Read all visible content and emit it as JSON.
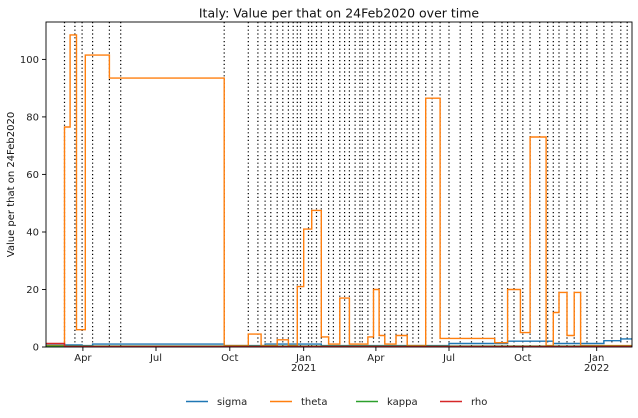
{
  "chart_data": {
    "type": "line",
    "title": "Italy: Value per that on 24Feb2020 over time",
    "xlabel": "",
    "ylabel": "Value per that on 24Feb2020",
    "xlim": [
      "2020-02-15",
      "2022-02-14"
    ],
    "ylim": [
      0,
      113
    ],
    "y_ticks": [
      0,
      20,
      40,
      60,
      80,
      100
    ],
    "x_ticks": [
      {
        "date": "2020-04-01",
        "label": "Apr",
        "sub": ""
      },
      {
        "date": "2020-07-01",
        "label": "Jul",
        "sub": ""
      },
      {
        "date": "2020-10-01",
        "label": "Oct",
        "sub": ""
      },
      {
        "date": "2021-01-01",
        "label": "Jan",
        "sub": "2021"
      },
      {
        "date": "2021-04-01",
        "label": "Apr",
        "sub": ""
      },
      {
        "date": "2021-07-01",
        "label": "Jul",
        "sub": ""
      },
      {
        "date": "2021-10-01",
        "label": "Oct",
        "sub": ""
      },
      {
        "date": "2022-01-01",
        "label": "Jan",
        "sub": "2022"
      }
    ],
    "grid": false,
    "legend_position": "bottom-center",
    "vlines": [
      "2020-03-09",
      "2020-03-22",
      "2020-03-31",
      "2020-04-13",
      "2020-05-04",
      "2020-05-18",
      "2020-09-24",
      "2020-10-24",
      "2020-11-05",
      "2020-11-14",
      "2020-11-21",
      "2020-11-29",
      "2020-12-06",
      "2020-12-13",
      "2020-12-19",
      "2020-12-24",
      "2020-12-28",
      "2021-01-07",
      "2021-01-11",
      "2021-01-17",
      "2021-01-23",
      "2021-02-01",
      "2021-02-07",
      "2021-02-15",
      "2021-02-21",
      "2021-02-27",
      "2021-03-06",
      "2021-03-12",
      "2021-03-15",
      "2021-03-22",
      "2021-03-29",
      "2021-04-05",
      "2021-04-12",
      "2021-04-19",
      "2021-04-26",
      "2021-05-03",
      "2021-05-10",
      "2021-05-17",
      "2021-05-24",
      "2021-06-02",
      "2021-06-10",
      "2021-06-20",
      "2021-07-01",
      "2021-07-15",
      "2021-07-29",
      "2021-08-12",
      "2021-08-27",
      "2021-09-05",
      "2021-09-12",
      "2021-09-20",
      "2021-10-01",
      "2021-10-10",
      "2021-10-22",
      "2021-11-01",
      "2021-11-08",
      "2021-11-15",
      "2021-11-25",
      "2021-12-04",
      "2021-12-12",
      "2021-12-20",
      "2022-01-01",
      "2022-01-10",
      "2022-01-20",
      "2022-01-31",
      "2022-02-08"
    ],
    "series": [
      {
        "name": "sigma",
        "color": "#1f77b4",
        "points": [
          [
            "2020-02-15",
            1.0
          ],
          [
            "2020-03-09",
            1.0
          ],
          [
            "2020-03-09",
            0.7
          ],
          [
            "2020-03-31",
            0.7
          ],
          [
            "2020-03-31",
            0.5
          ],
          [
            "2020-04-13",
            0.5
          ],
          [
            "2020-04-13",
            1.0
          ],
          [
            "2020-09-24",
            1.0
          ],
          [
            "2020-09-24",
            0.5
          ],
          [
            "2020-11-14",
            0.5
          ],
          [
            "2020-11-14",
            1.0
          ],
          [
            "2021-01-23",
            1.0
          ],
          [
            "2021-01-23",
            0.5
          ],
          [
            "2021-07-01",
            0.5
          ],
          [
            "2021-07-01",
            1.2
          ],
          [
            "2021-09-12",
            1.2
          ],
          [
            "2021-09-12",
            2.0
          ],
          [
            "2021-11-08",
            2.0
          ],
          [
            "2021-11-08",
            1.2
          ],
          [
            "2022-01-10",
            1.2
          ],
          [
            "2022-01-10",
            2.2
          ],
          [
            "2022-01-31",
            2.2
          ],
          [
            "2022-01-31",
            2.8
          ],
          [
            "2022-02-14",
            2.8
          ]
        ]
      },
      {
        "name": "theta",
        "color": "#ff7f0e",
        "points": [
          [
            "2020-02-15",
            0.5
          ],
          [
            "2020-03-09",
            0.5
          ],
          [
            "2020-03-09",
            76.5
          ],
          [
            "2020-03-16",
            76.5
          ],
          [
            "2020-03-16",
            108.5
          ],
          [
            "2020-03-24",
            108.5
          ],
          [
            "2020-03-24",
            6
          ],
          [
            "2020-04-04",
            6
          ],
          [
            "2020-04-04",
            101.5
          ],
          [
            "2020-05-04",
            101.5
          ],
          [
            "2020-05-04",
            93.5
          ],
          [
            "2020-09-24",
            93.5
          ],
          [
            "2020-09-24",
            0.5
          ],
          [
            "2020-10-24",
            0.5
          ],
          [
            "2020-10-24",
            4.5
          ],
          [
            "2020-11-09",
            4.5
          ],
          [
            "2020-11-09",
            0.5
          ],
          [
            "2020-11-29",
            0.5
          ],
          [
            "2020-11-29",
            2.5
          ],
          [
            "2020-12-13",
            2.5
          ],
          [
            "2020-12-13",
            0.5
          ],
          [
            "2020-12-24",
            0.5
          ],
          [
            "2020-12-24",
            21
          ],
          [
            "2021-01-01",
            21
          ],
          [
            "2021-01-01",
            41
          ],
          [
            "2021-01-11",
            41
          ],
          [
            "2021-01-11",
            47.5
          ],
          [
            "2021-01-23",
            47.5
          ],
          [
            "2021-01-23",
            3.5
          ],
          [
            "2021-02-01",
            3.5
          ],
          [
            "2021-02-01",
            1
          ],
          [
            "2021-02-15",
            1
          ],
          [
            "2021-02-15",
            17
          ],
          [
            "2021-02-27",
            17
          ],
          [
            "2021-02-27",
            1
          ],
          [
            "2021-03-22",
            1
          ],
          [
            "2021-03-22",
            3.5
          ],
          [
            "2021-03-29",
            3.5
          ],
          [
            "2021-03-29",
            20
          ],
          [
            "2021-04-05",
            20
          ],
          [
            "2021-04-05",
            4
          ],
          [
            "2021-04-12",
            4
          ],
          [
            "2021-04-12",
            1
          ],
          [
            "2021-04-26",
            1
          ],
          [
            "2021-04-26",
            4
          ],
          [
            "2021-05-10",
            4
          ],
          [
            "2021-05-10",
            0.5
          ],
          [
            "2021-06-02",
            0.5
          ],
          [
            "2021-06-02",
            86.5
          ],
          [
            "2021-06-20",
            86.5
          ],
          [
            "2021-06-20",
            3
          ],
          [
            "2021-08-27",
            3
          ],
          [
            "2021-08-27",
            1.5
          ],
          [
            "2021-09-12",
            1.5
          ],
          [
            "2021-09-12",
            20
          ],
          [
            "2021-09-28",
            20
          ],
          [
            "2021-09-28",
            5
          ],
          [
            "2021-10-10",
            5
          ],
          [
            "2021-10-10",
            73
          ],
          [
            "2021-10-30",
            73
          ],
          [
            "2021-10-30",
            0.5
          ],
          [
            "2021-11-08",
            0.5
          ],
          [
            "2021-11-08",
            12
          ],
          [
            "2021-11-15",
            12
          ],
          [
            "2021-11-15",
            19
          ],
          [
            "2021-11-25",
            19
          ],
          [
            "2021-11-25",
            4
          ],
          [
            "2021-12-04",
            4
          ],
          [
            "2021-12-04",
            19
          ],
          [
            "2021-12-12",
            19
          ],
          [
            "2021-12-12",
            0.5
          ],
          [
            "2022-02-14",
            0.5
          ]
        ]
      },
      {
        "name": "kappa",
        "color": "#2ca02c",
        "points": [
          [
            "2020-02-15",
            0.3
          ],
          [
            "2022-02-14",
            0.3
          ]
        ]
      },
      {
        "name": "rho",
        "color": "#d62728",
        "points": [
          [
            "2020-02-15",
            1.2
          ],
          [
            "2020-03-09",
            1.2
          ],
          [
            "2020-03-09",
            0.2
          ],
          [
            "2022-02-14",
            0.2
          ]
        ]
      }
    ]
  }
}
